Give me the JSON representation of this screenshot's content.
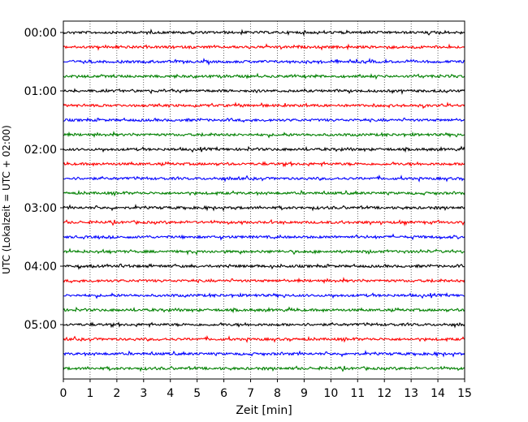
{
  "chart_data": {
    "type": "line",
    "title": "",
    "xlabel": "Zeit  [min]",
    "ylabel": "UTC (Lokalzeit = UTC + 02:00)",
    "xlim": [
      0,
      15
    ],
    "x_ticks": [
      "0",
      "1",
      "2",
      "3",
      "4",
      "5",
      "6",
      "7",
      "8",
      "9",
      "10",
      "11",
      "12",
      "13",
      "14",
      "15"
    ],
    "y_ticks": [
      "00:00",
      "01:00",
      "02:00",
      "03:00",
      "04:00",
      "05:00"
    ],
    "trace_minutes_per_line": 15,
    "trace_count": 24,
    "trace_colors": [
      "#000000",
      "#ff0000",
      "#0000ff",
      "#008000"
    ],
    "grid": "vertical dotted lines at each minute",
    "legend": "none"
  }
}
